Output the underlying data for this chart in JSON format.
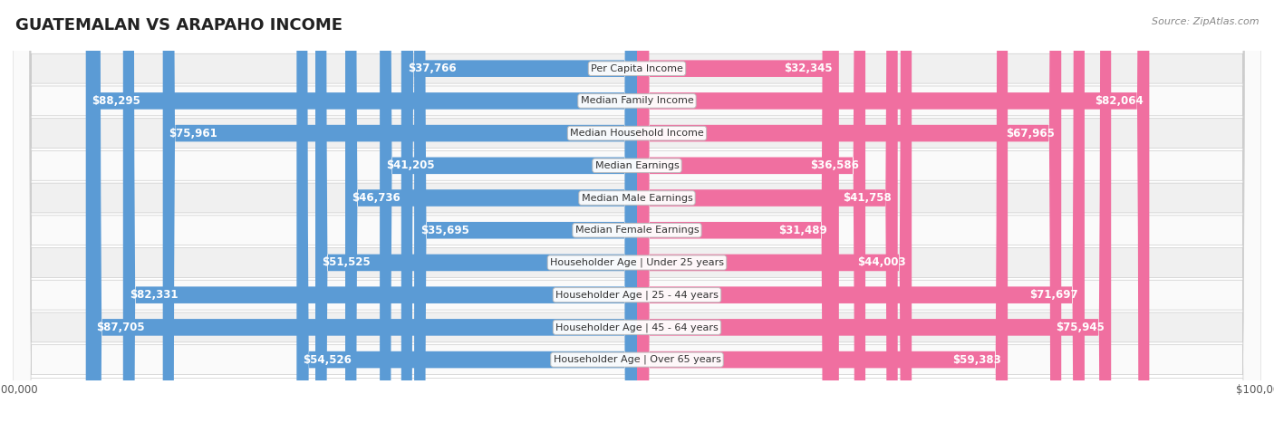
{
  "title": "GUATEMALAN VS ARAPAHO INCOME",
  "source": "Source: ZipAtlas.com",
  "categories": [
    "Per Capita Income",
    "Median Family Income",
    "Median Household Income",
    "Median Earnings",
    "Median Male Earnings",
    "Median Female Earnings",
    "Householder Age | Under 25 years",
    "Householder Age | 25 - 44 years",
    "Householder Age | 45 - 64 years",
    "Householder Age | Over 65 years"
  ],
  "guatemalan_values": [
    37766,
    88295,
    75961,
    41205,
    46736,
    35695,
    51525,
    82331,
    87705,
    54526
  ],
  "arapaho_values": [
    32345,
    82064,
    67965,
    36586,
    41758,
    31489,
    44003,
    71697,
    75945,
    59383
  ],
  "guatemalan_labels": [
    "$37,766",
    "$88,295",
    "$75,961",
    "$41,205",
    "$46,736",
    "$35,695",
    "$51,525",
    "$82,331",
    "$87,705",
    "$54,526"
  ],
  "arapaho_labels": [
    "$32,345",
    "$82,064",
    "$67,965",
    "$36,586",
    "$41,758",
    "$31,489",
    "$44,003",
    "$71,697",
    "$75,945",
    "$59,383"
  ],
  "guatemalan_color_light": "#a8c8e8",
  "guatemalan_color_dark": "#5b9bd5",
  "arapaho_color_light": "#f4a7c0",
  "arapaho_color_dark": "#f06fa0",
  "max_value": 100000,
  "title_fontsize": 13,
  "label_fontsize": 8.5,
  "cat_fontsize": 8,
  "inside_threshold": 30000,
  "bg_color": "#ffffff",
  "row_even_color": "#f0f0f0",
  "row_odd_color": "#fafafa"
}
